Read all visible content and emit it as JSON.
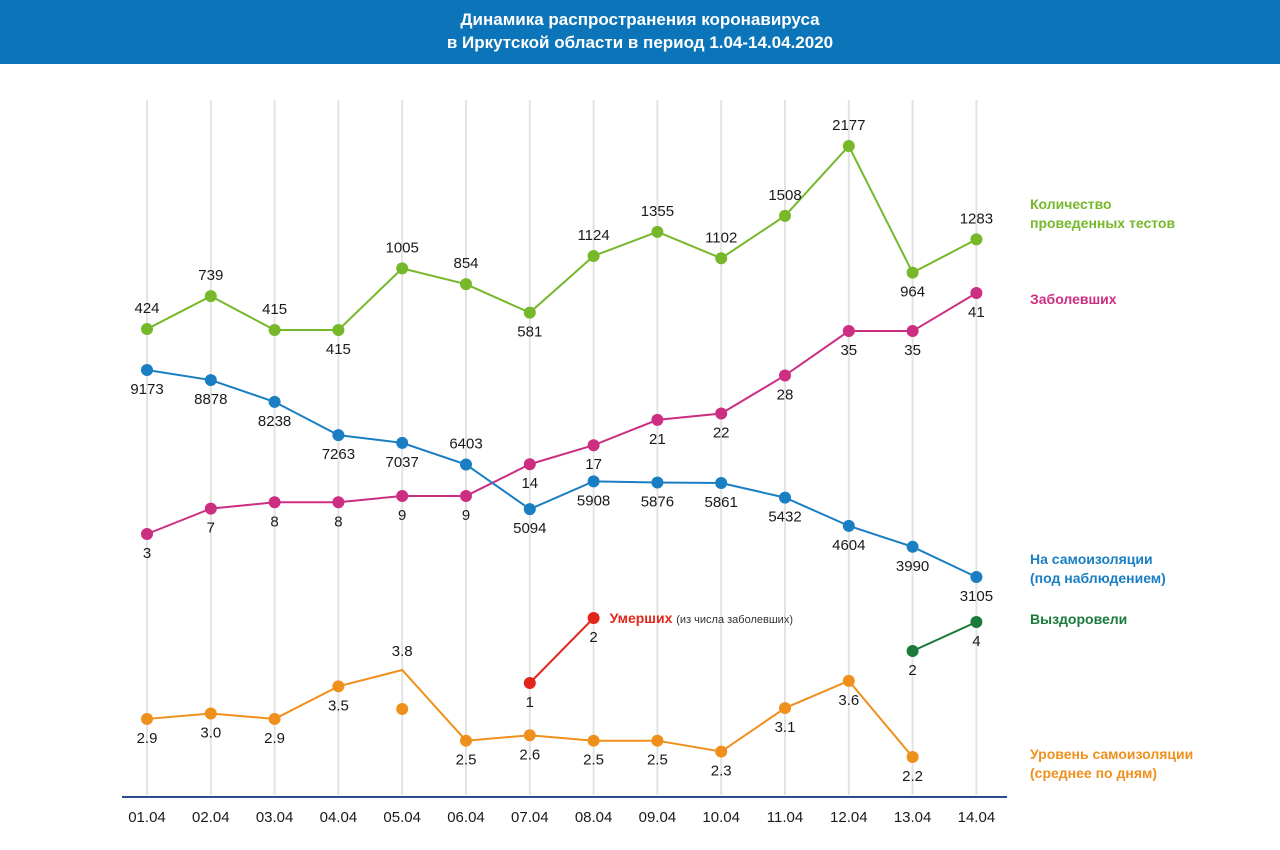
{
  "header": {
    "title_line1": "Динамика распространения коронавируса",
    "title_line2": "в Иркутской области в период  1.04-14.04.2020"
  },
  "chart_data": {
    "type": "line",
    "categories": [
      "01.04",
      "02.04",
      "03.04",
      "04.04",
      "05.04",
      "06.04",
      "07.04",
      "08.04",
      "09.04",
      "10.04",
      "11.04",
      "12.04",
      "13.04",
      "14.04"
    ],
    "series": [
      {
        "key": "tests",
        "name": "Количество проведенных тестов",
        "color": "#76b82a",
        "values": [
          424,
          739,
          415,
          415,
          1005,
          854,
          581,
          1124,
          1355,
          1102,
          1508,
          2177,
          964,
          1283
        ]
      },
      {
        "key": "sick",
        "name": "Заболевших",
        "color": "#cc2e82",
        "values": [
          3,
          7,
          8,
          8,
          9,
          9,
          14,
          17,
          21,
          22,
          28,
          35,
          35,
          41
        ]
      },
      {
        "key": "isolation",
        "name": "На самоизоляции (под наблюдением)",
        "color": "#1a7ec2",
        "values": [
          9173,
          8878,
          8238,
          7263,
          7037,
          6403,
          5094,
          5908,
          5876,
          5861,
          5432,
          4604,
          3990,
          3105
        ]
      },
      {
        "key": "deaths",
        "name": "Умерших",
        "note": "(из числа заболевших)",
        "color": "#e3261c",
        "values": [
          null,
          null,
          null,
          null,
          null,
          null,
          1,
          2,
          null,
          null,
          null,
          null,
          null,
          null
        ]
      },
      {
        "key": "recovered",
        "name": "Выздоровели",
        "color": "#1a7a3a",
        "values": [
          null,
          null,
          null,
          null,
          null,
          null,
          null,
          null,
          null,
          null,
          null,
          null,
          2,
          4
        ]
      },
      {
        "key": "level",
        "name": "Уровень самоизоляции (среднее по дням)",
        "color": "#f0901c",
        "values": [
          2.9,
          3.0,
          2.9,
          3.5,
          3.8,
          2.5,
          2.6,
          2.5,
          2.5,
          2.3,
          3.1,
          3.6,
          2.2,
          null
        ],
        "value_labels": [
          "2.9",
          "3.0",
          "2.9",
          "3.5",
          "3.8",
          "2.5",
          "2.6",
          "2.5",
          "2.5",
          "2.3",
          "3.1",
          "3.6",
          "2.2",
          ""
        ]
      }
    ],
    "legend": [
      {
        "line1": "Количество",
        "line2": "проведенных тестов",
        "color": "#76b82a"
      },
      {
        "line1": "Заболевших",
        "line2": "",
        "color": "#cc2e82"
      },
      {
        "line1": "На самоизоляции",
        "line2": "(под наблюдением)",
        "color": "#1a7ec2"
      },
      {
        "line1": "Выздоровели",
        "line2": "",
        "color": "#1a7a3a"
      },
      {
        "line1": "Уровень самоизоляции",
        "line2": "(среднее по дням)",
        "color": "#f0901c"
      }
    ],
    "legend_placement": "right",
    "grid": "vertical",
    "colors": {
      "header_bg": "#0c74b8",
      "gridline": "#e3e3e3",
      "axis": "#2b4d8f"
    }
  }
}
